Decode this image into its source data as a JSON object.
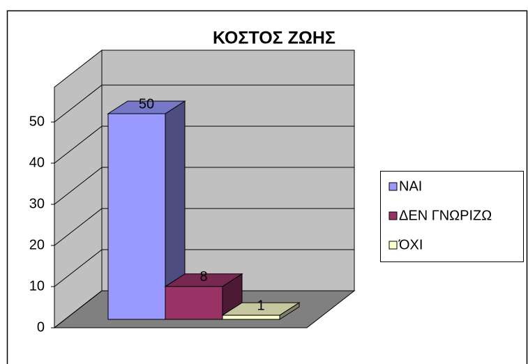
{
  "chart_data": {
    "type": "bar3d",
    "title": "ΚΟΣΤΟΣ ΖΩΗΣ",
    "series": [
      {
        "name": "ΝΑΙ",
        "color": "#9999ff",
        "values": [
          50
        ]
      },
      {
        "name": "ΔΕΝ ΓΝΩΡΙΖΩ",
        "color": "#993366",
        "values": [
          8
        ]
      },
      {
        "name": "ΌΧΙ",
        "color": "#ffffcc",
        "values": [
          1
        ]
      }
    ],
    "ylim": [
      0,
      50
    ],
    "yticks": [
      0,
      10,
      20,
      30,
      40,
      50
    ],
    "grid": true,
    "legend": "right"
  }
}
